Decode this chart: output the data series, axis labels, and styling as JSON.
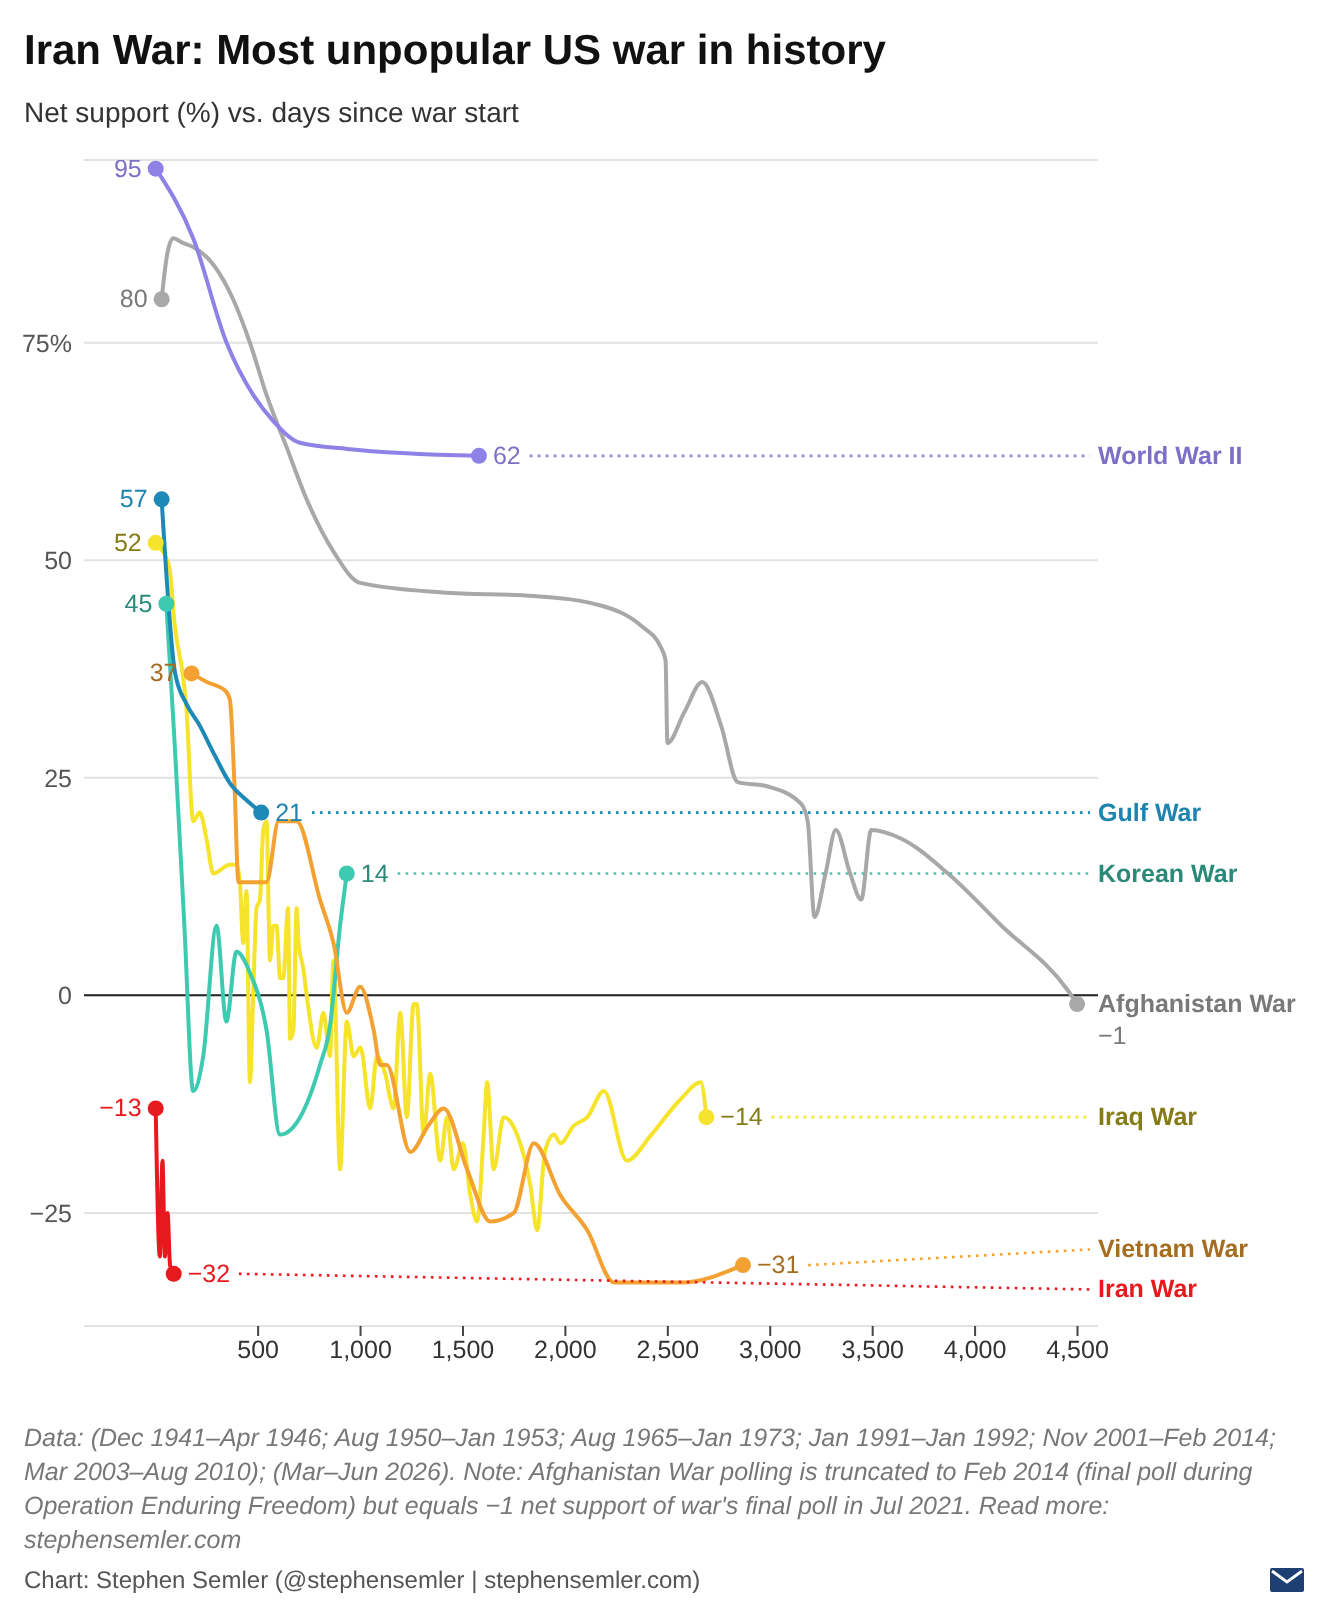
{
  "chart_data": {
    "type": "line",
    "title": "Iran War: Most unpopular US war in history",
    "subtitle": "Net support (%) vs. days since war start",
    "xlim": [
      -350,
      4600
    ],
    "xticks": [
      500,
      {
        "value": 1000,
        "label": "1,000"
      },
      {
        "value": 1500,
        "label": "1,500"
      },
      {
        "value": 2000,
        "label": "2,000"
      },
      {
        "value": 2500,
        "label": "2,500"
      },
      {
        "value": 3000,
        "label": "3,000"
      },
      {
        "value": 3500,
        "label": "3,500"
      },
      {
        "value": 4000,
        "label": "4,000"
      },
      {
        "value": 4500,
        "label": "4,500"
      }
    ],
    "ylim": [
      -38,
      96
    ],
    "yticks": [
      {
        "value": -25,
        "label": "−25"
      },
      0,
      25,
      50,
      {
        "value": 75,
        "label": "75%"
      }
    ],
    "grid": "y",
    "line_style": "solid",
    "ref_lines": [
      {
        "axis": "y",
        "value": 0,
        "color": "#222222"
      }
    ],
    "series": [
      {
        "name": "Afghanistan War",
        "color": "#a8a8a8",
        "x": [
          29,
          55,
          85,
          130,
          183,
          281,
          378,
          460,
          541,
          639,
          737,
          868,
          998,
          1400,
          1846,
          2172,
          2368,
          2466,
          2489,
          2498,
          2580,
          2668,
          2760,
          2841,
          2988,
          3151,
          3183,
          3216,
          3270,
          3320,
          3390,
          3444,
          3493,
          3640,
          3868,
          4129,
          4455,
          4498
        ],
        "values": [
          80,
          85,
          87,
          86.5,
          86,
          84,
          80,
          75,
          69,
          63,
          57,
          51,
          47.4,
          46.3,
          45.9,
          44.8,
          42.5,
          40,
          38.5,
          29,
          32.5,
          36,
          31,
          24.5,
          24,
          22,
          20,
          9,
          14,
          19,
          14,
          11,
          19,
          18,
          14,
          8,
          0.5,
          -1
        ],
        "value_labels": [
          "80",
          null,
          null,
          null,
          null,
          null,
          null,
          null,
          null,
          null,
          null,
          null,
          null,
          null,
          null,
          null,
          null,
          null,
          null,
          null,
          null,
          null,
          null,
          null,
          null,
          null,
          null,
          null,
          null,
          null,
          null,
          null,
          null,
          null,
          null,
          null,
          null,
          "−1"
        ]
      },
      {
        "name": "World War II",
        "color": "#8f82e6",
        "x": [
          0,
          183,
          346,
          476,
          574,
          705,
          933,
          1578
        ],
        "values": [
          95,
          87,
          75,
          69,
          66,
          63.5,
          62.8,
          62
        ],
        "value_labels": [
          "95",
          null,
          null,
          null,
          null,
          null,
          null,
          "62"
        ]
      },
      {
        "name": "Iraq War",
        "color": "#f6e32b",
        "x": [
          0,
          35,
          68,
          91,
          150,
          183,
          215,
          248,
          281,
          362,
          394,
          411,
          427,
          443,
          460,
          476,
          492,
          509,
          525,
          541,
          558,
          574,
          590,
          607,
          623,
          646,
          656,
          672,
          688,
          698,
          721,
          737,
          786,
          819,
          851,
          868,
          900,
          933,
          966,
          1000,
          1047,
          1080,
          1120,
          1161,
          1194,
          1226,
          1259,
          1275,
          1308,
          1340,
          1389,
          1422,
          1455,
          1500,
          1536,
          1569,
          1601,
          1618,
          1650,
          1699,
          1764,
          1830,
          1862,
          1900,
          1944,
          1976,
          2040,
          2107,
          2188,
          2300,
          2420,
          2560,
          2661,
          2688
        ],
        "values": [
          52,
          51,
          49,
          43,
          33,
          20,
          21,
          18,
          14,
          15,
          15,
          13,
          6,
          12,
          -10,
          0,
          10,
          11,
          19,
          20,
          4,
          8,
          8,
          2,
          2,
          10,
          -5,
          -4,
          10,
          6,
          3,
          0,
          -6,
          -2,
          -7,
          4,
          -20,
          -3,
          -7,
          -6,
          -13,
          -7,
          -9,
          -13,
          -2,
          -14,
          -1,
          -1,
          -16,
          -9,
          -19,
          -14,
          -20,
          -17,
          -23,
          -26,
          -16,
          -10,
          -20,
          -14,
          -16,
          -22,
          -27,
          -18,
          -16,
          -17,
          -15,
          -14,
          -11,
          -19,
          -16,
          -12,
          -10,
          -14
        ],
        "value_labels": [
          "52",
          null,
          null,
          null,
          null,
          null,
          null,
          null,
          null,
          null,
          null,
          null,
          null,
          null,
          null,
          null,
          null,
          null,
          null,
          null,
          null,
          null,
          null,
          null,
          null,
          null,
          null,
          null,
          null,
          null,
          null,
          null,
          null,
          null,
          null,
          null,
          null,
          null,
          null,
          null,
          null,
          null,
          null,
          null,
          null,
          null,
          null,
          null,
          null,
          null,
          null,
          null,
          null,
          null,
          null,
          null,
          null,
          null,
          null,
          null,
          null,
          null,
          null,
          null,
          null,
          null,
          null,
          null,
          null,
          null,
          null,
          null,
          null,
          "−14"
        ]
      },
      {
        "name": "Korean War",
        "color": "#3ec9b1",
        "x": [
          52,
          90,
          140,
          183,
          232,
          297,
          345,
          394,
          460,
          541,
          607,
          705,
          802,
          851,
          900,
          933
        ],
        "values": [
          45,
          30,
          8,
          -11,
          -7,
          8,
          -3,
          5,
          2.6,
          -4,
          -16,
          -14,
          -8,
          -3.5,
          8,
          14
        ],
        "value_labels": [
          "45",
          null,
          null,
          null,
          null,
          null,
          null,
          null,
          null,
          null,
          null,
          null,
          null,
          null,
          null,
          "14"
        ]
      },
      {
        "name": "Vietnam War",
        "color": "#f2a132",
        "x": [
          175,
          250,
          340,
          362,
          385,
          404,
          541,
          600,
          688,
          802,
          868,
          933,
          998,
          1064,
          1096,
          1128,
          1243,
          1330,
          1406,
          1520,
          1634,
          1748,
          1846,
          1976,
          2107,
          2237,
          2564,
          2867
        ],
        "values": [
          37,
          36,
          35,
          34,
          24,
          13,
          13,
          20,
          20,
          11,
          6,
          -2,
          1,
          -4,
          -8,
          -8,
          -18,
          -15,
          -13,
          -20,
          -26,
          -25,
          -17,
          -23,
          -27,
          -33,
          -33,
          -31
        ],
        "value_labels": [
          "37",
          null,
          null,
          null,
          null,
          null,
          null,
          null,
          null,
          null,
          null,
          null,
          null,
          null,
          null,
          null,
          null,
          null,
          null,
          null,
          null,
          null,
          null,
          null,
          null,
          null,
          null,
          "−31"
        ]
      },
      {
        "name": "Gulf War",
        "color": "#1d89b6",
        "x": [
          29,
          95,
          150,
          215,
          290,
          362,
          440,
          515
        ],
        "values": [
          57,
          37,
          33.5,
          31,
          27.5,
          24.4,
          22.5,
          21
        ],
        "value_labels": [
          "57",
          null,
          null,
          null,
          null,
          null,
          null,
          "21"
        ]
      },
      {
        "name": "Iran War",
        "color": "#e8191e",
        "x": [
          0,
          20,
          33,
          45,
          58,
          70,
          88
        ],
        "values": [
          -13,
          -30,
          -19,
          -30,
          -25,
          -31,
          -32
        ],
        "value_labels": [
          "−13",
          null,
          null,
          null,
          null,
          null,
          "−32"
        ]
      }
    ],
    "annotations": [
      "Data: (Dec 1941–Apr 1946; Aug 1950–Jan 1953; Aug 1965–Jan 1973; Jan 1991–Jan 1992; Nov 2001–Feb 2014; Mar 2003–Aug 2010); (Mar–Jun 2026). Note: Afghanistan War polling is truncated to Feb 2014 (final poll during Operation Enduring Freedom) but equals −1 net support of war's final poll in Jul 2021. Read more: stephensemler.com",
      "Chart: Stephen Semler (@stephensemler | stephensemler.com)"
    ]
  }
}
